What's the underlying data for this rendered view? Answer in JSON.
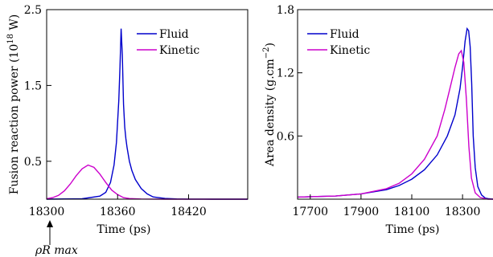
{
  "chart_data": [
    {
      "type": "line",
      "title": "",
      "xlabel": "Time (ps)",
      "ylabel": "Fusion reaction power (10",
      "ylabel_sup": "18",
      "ylabel_end": " W)",
      "xlim": [
        18300,
        18470
      ],
      "ylim": [
        0,
        2.5
      ],
      "xticks": [
        18300,
        18360,
        18420
      ],
      "xtick_labels": [
        "18300",
        "18360",
        "18420"
      ],
      "yticks": [
        0.5,
        1.5,
        2.5
      ],
      "ytick_labels": [
        "0.5",
        "1.5",
        "2.5"
      ],
      "legend_position": "top-right",
      "annotation": {
        "label": "ρR max",
        "x": 18300
      },
      "series": [
        {
          "name": "Fluid",
          "color": "#0000cc",
          "x": [
            18300,
            18330,
            18345,
            18350,
            18354,
            18357,
            18359,
            18361,
            18362,
            18363,
            18364,
            18365,
            18366,
            18367,
            18368,
            18370,
            18372,
            18375,
            18380,
            18385,
            18390,
            18400,
            18410,
            18420,
            18440,
            18470
          ],
          "y": [
            0,
            0.005,
            0.04,
            0.09,
            0.22,
            0.45,
            0.75,
            1.3,
            1.75,
            2.25,
            1.9,
            1.25,
            0.95,
            0.8,
            0.68,
            0.5,
            0.38,
            0.26,
            0.14,
            0.07,
            0.03,
            0.01,
            0.003,
            0.001,
            0,
            0
          ]
        },
        {
          "name": "Kinetic",
          "color": "#cc00cc",
          "x": [
            18300,
            18305,
            18310,
            18315,
            18320,
            18325,
            18330,
            18335,
            18340,
            18345,
            18350,
            18355,
            18360,
            18365,
            18370,
            18380,
            18400,
            18470
          ],
          "y": [
            0.005,
            0.02,
            0.05,
            0.11,
            0.2,
            0.31,
            0.4,
            0.45,
            0.42,
            0.33,
            0.22,
            0.12,
            0.06,
            0.02,
            0.008,
            0.002,
            0,
            0
          ]
        }
      ]
    },
    {
      "type": "line",
      "title": "",
      "xlabel": "Time (ps)",
      "ylabel": "Area density (g.cm",
      "ylabel_sup": "−2",
      "ylabel_end": ")",
      "xlim": [
        17650,
        18420
      ],
      "ylim": [
        0,
        1.8
      ],
      "xticks": [
        17700,
        17900,
        18100,
        18300
      ],
      "xtick_labels": [
        "17700",
        "17900",
        "18100",
        "18300"
      ],
      "yticks": [
        0.6,
        1.2,
        1.8
      ],
      "ytick_labels": [
        "0.6",
        "1.2",
        "1.8"
      ],
      "legend_position": "top-left",
      "series": [
        {
          "name": "Fluid",
          "color": "#0000cc",
          "x": [
            17650,
            17800,
            17900,
            18000,
            18050,
            18100,
            18150,
            18200,
            18240,
            18270,
            18290,
            18300,
            18310,
            18318,
            18324,
            18330,
            18336,
            18342,
            18350,
            18360,
            18375,
            18390,
            18400,
            18420
          ],
          "y": [
            0.02,
            0.03,
            0.05,
            0.09,
            0.13,
            0.19,
            0.28,
            0.42,
            0.6,
            0.8,
            1.05,
            1.25,
            1.5,
            1.62,
            1.6,
            1.45,
            1.1,
            0.6,
            0.3,
            0.12,
            0.04,
            0.01,
            0.005,
            0
          ]
        },
        {
          "name": "Kinetic",
          "color": "#cc00cc",
          "x": [
            17650,
            17800,
            17900,
            18000,
            18050,
            18100,
            18150,
            18200,
            18230,
            18250,
            18270,
            18285,
            18295,
            18305,
            18315,
            18325,
            18335,
            18350,
            18370,
            18400,
            18420
          ],
          "y": [
            0.02,
            0.03,
            0.05,
            0.1,
            0.15,
            0.24,
            0.38,
            0.6,
            0.85,
            1.05,
            1.25,
            1.38,
            1.41,
            1.3,
            0.95,
            0.5,
            0.2,
            0.06,
            0.015,
            0,
            0
          ]
        }
      ]
    }
  ]
}
